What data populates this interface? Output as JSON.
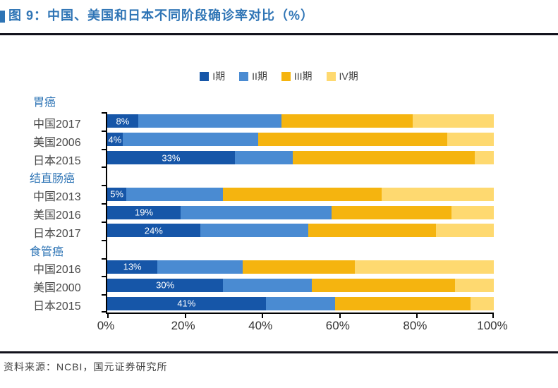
{
  "header": {
    "title": "图 9：中国、美国和日本不同阶段确诊率对比（%）"
  },
  "footer": {
    "source": "资料来源：NCBI，国元证券研究所"
  },
  "colors": {
    "title_blue": "#2E74B5",
    "axis_black": "#000000",
    "stage_colors": [
      "#1656A8",
      "#4A8BD2",
      "#F5B40F",
      "#FED970"
    ]
  },
  "chart_data": {
    "type": "bar",
    "subtype": "horizontal-stacked",
    "title": "中国、美国和日本不同阶段确诊率对比（%）",
    "legend": [
      "I期",
      "II期",
      "III期",
      "IV期"
    ],
    "legend_position": "top-center",
    "xlim": [
      0,
      100
    ],
    "x_tick_labels": [
      "0%",
      "20%",
      "40%",
      "60%",
      "80%",
      "100%"
    ],
    "grid": false,
    "groups": [
      {
        "label": "胃癌",
        "rows": [
          {
            "label": "中国2017",
            "values": [
              8,
              37,
              34,
              21
            ],
            "data_label": "8%"
          },
          {
            "label": "美国2006",
            "values": [
              4,
              35,
              49,
              12
            ],
            "data_label": "4%"
          },
          {
            "label": "日本2015",
            "values": [
              33,
              15,
              47,
              5
            ],
            "data_label": "33%"
          }
        ]
      },
      {
        "label": "结直肠癌",
        "rows": [
          {
            "label": "中国2013",
            "values": [
              5,
              25,
              41,
              29
            ],
            "data_label": "5%"
          },
          {
            "label": "美国2016",
            "values": [
              19,
              39,
              31,
              11
            ],
            "data_label": "19%"
          },
          {
            "label": "日本2017",
            "values": [
              24,
              28,
              33,
              15
            ],
            "data_label": "24%"
          }
        ]
      },
      {
        "label": "食管癌",
        "rows": [
          {
            "label": "中国2016",
            "values": [
              13,
              22,
              29,
              36
            ],
            "data_label": "13%"
          },
          {
            "label": "美国2000",
            "values": [
              30,
              23,
              37,
              10
            ],
            "data_label": "30%"
          },
          {
            "label": "日本2015",
            "values": [
              41,
              18,
              35,
              6
            ],
            "data_label": "41%"
          }
        ]
      }
    ]
  }
}
